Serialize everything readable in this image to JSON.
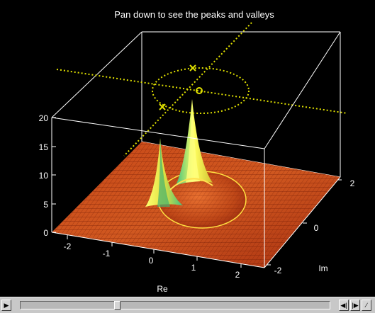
{
  "plot": {
    "title": "Pan down to see the peaks and valleys",
    "x_label": "Re",
    "y_label": "Im",
    "z_ticks": [
      "0",
      "5",
      "10",
      "15",
      "20"
    ],
    "re_ticks": [
      "-2",
      "-1",
      "0",
      "1",
      "2"
    ],
    "im_ticks": [
      "-2",
      "0",
      "2"
    ],
    "colors": {
      "background": "#000000",
      "box": "#ffffff",
      "overlay_lines": "#e0e000",
      "surface_low": "#b83a10",
      "surface_high": "#ffff60",
      "peak_side": "#40c080"
    }
  },
  "pan_control": {
    "left_arrow": "▶",
    "right_arrow_a": "◀|",
    "right_arrow_b": "|▶",
    "end_button": "∕",
    "position": 0.31
  }
}
